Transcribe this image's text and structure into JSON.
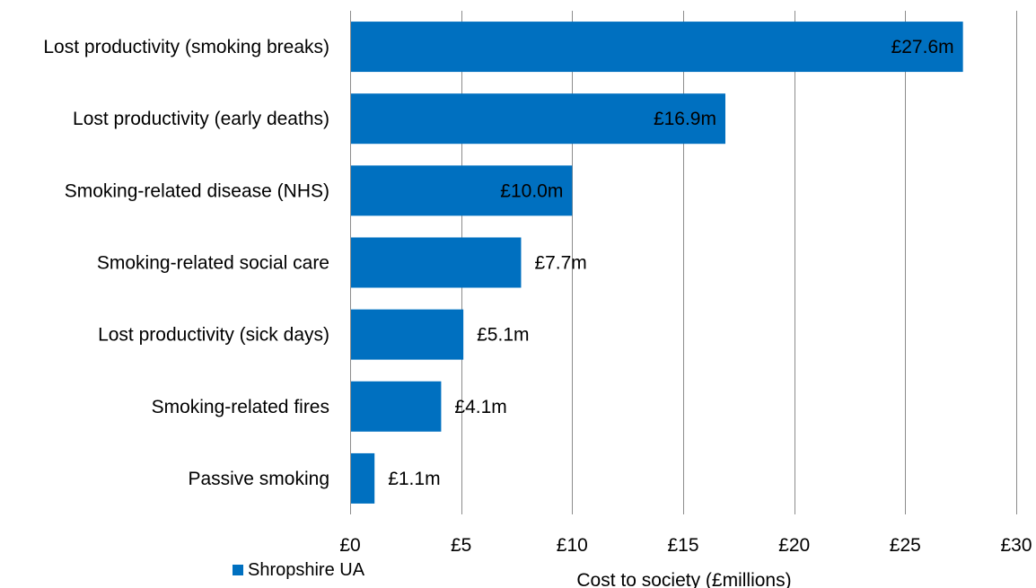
{
  "chart_data": {
    "type": "bar",
    "orientation": "horizontal",
    "categories": [
      "Lost productivity (smoking breaks)",
      "Lost productivity (early deaths)",
      "Smoking-related disease (NHS)",
      "Smoking-related social care",
      "Lost productivity (sick days)",
      "Smoking-related fires",
      "Passive smoking"
    ],
    "series": [
      {
        "name": "Shropshire UA",
        "color": "#0070C0",
        "values": [
          27.6,
          16.9,
          10.0,
          7.7,
          5.1,
          4.1,
          1.1
        ],
        "labels": [
          "£27.6m",
          "£16.9m",
          "£10.0m",
          "£7.7m",
          "£5.1m",
          "£4.1m",
          "£1.1m"
        ]
      }
    ],
    "xlim": [
      0,
      30
    ],
    "xticks": [
      0,
      5,
      10,
      15,
      20,
      25,
      30
    ],
    "xtick_labels": [
      "£0",
      "£5",
      "£10",
      "£15",
      "£20",
      "£25",
      "£30"
    ],
    "xlabel": "Cost to society (£millions)",
    "ylabel": "",
    "title": "",
    "grid": "vertical",
    "legend_position": "bottom-left"
  }
}
